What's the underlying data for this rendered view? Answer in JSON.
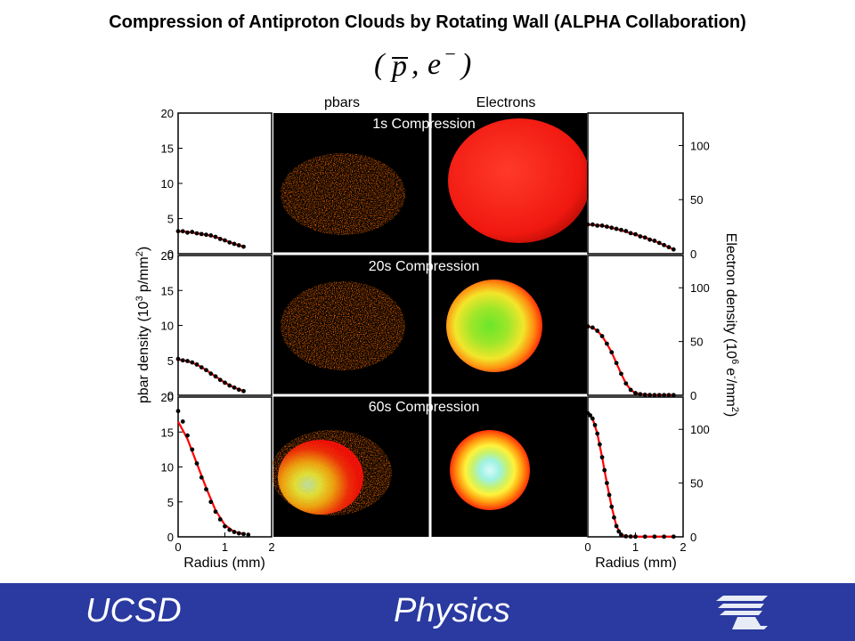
{
  "title": "Compression of Antiproton Clouds by Rotating Wall (ALPHA Collaboration)",
  "formula": {
    "open": "(",
    "pbar": "p",
    "comma": ",",
    "e": "e",
    "sup": "−",
    "close": ")"
  },
  "footer": {
    "left": "UCSD",
    "right": "Physics",
    "logo_icon": "ucsd-trident-logo-icon"
  },
  "colors": {
    "footer_bg": "#2a3aa0",
    "data_points": "#000000",
    "fit_line": "#ff0000",
    "image_bg": "#000000"
  },
  "chart_data": [
    {
      "type": "scatter",
      "title": "",
      "panels": [
        {
          "name": "1s",
          "x": [
            0.0,
            0.1,
            0.2,
            0.3,
            0.4,
            0.5,
            0.6,
            0.7,
            0.8,
            0.9,
            1.0,
            1.1,
            1.2,
            1.3,
            1.4
          ],
          "y": [
            3.2,
            3.2,
            3.0,
            3.1,
            2.9,
            2.8,
            2.7,
            2.6,
            2.4,
            2.1,
            1.9,
            1.6,
            1.4,
            1.2,
            1.0
          ],
          "fit_x": [
            0,
            0.2,
            0.4,
            0.6,
            0.8,
            1.0,
            1.2,
            1.4
          ],
          "fit_y": [
            3.2,
            3.1,
            2.9,
            2.7,
            2.4,
            1.9,
            1.4,
            1.0
          ]
        },
        {
          "name": "20s",
          "x": [
            0.0,
            0.1,
            0.2,
            0.3,
            0.4,
            0.5,
            0.6,
            0.7,
            0.8,
            0.9,
            1.0,
            1.1,
            1.2,
            1.3,
            1.4
          ],
          "y": [
            5.2,
            5.0,
            4.9,
            4.7,
            4.4,
            4.0,
            3.6,
            3.1,
            2.7,
            2.2,
            1.8,
            1.4,
            1.1,
            0.8,
            0.6
          ],
          "fit_x": [
            0,
            0.2,
            0.4,
            0.6,
            0.8,
            1.0,
            1.2,
            1.4
          ],
          "fit_y": [
            5.1,
            4.9,
            4.4,
            3.6,
            2.7,
            1.8,
            1.1,
            0.6
          ]
        },
        {
          "name": "60s",
          "x": [
            0.0,
            0.1,
            0.2,
            0.3,
            0.4,
            0.5,
            0.6,
            0.7,
            0.8,
            0.9,
            1.0,
            1.1,
            1.2,
            1.3,
            1.4,
            1.5
          ],
          "y": [
            18.0,
            16.5,
            14.5,
            12.5,
            10.5,
            8.5,
            6.8,
            5.0,
            3.6,
            2.5,
            1.5,
            1.0,
            0.7,
            0.5,
            0.4,
            0.3
          ],
          "fit_x": [
            0,
            0.2,
            0.4,
            0.6,
            0.8,
            1.0,
            1.2,
            1.4
          ],
          "fit_y": [
            16.5,
            14.0,
            10.5,
            7.0,
            3.8,
            1.7,
            0.7,
            0.4
          ]
        }
      ],
      "xlabel": "Radius (mm)",
      "ylabel": "pbar density (10",
      "ylabel_sup": "3",
      "ylabel_unit": "p/mm",
      "ylabel_sup2": "2",
      "ylabel_close": ")",
      "xlim": [
        0,
        2
      ],
      "ylim": [
        0,
        20
      ],
      "xticks": [
        "0",
        "1",
        "2"
      ],
      "yticks": [
        "0",
        "5",
        "10",
        "15",
        "20"
      ],
      "grid": false
    },
    {
      "type": "scatter",
      "title": "",
      "panels": [
        {
          "name": "1s",
          "x": [
            0.0,
            0.1,
            0.2,
            0.3,
            0.4,
            0.5,
            0.6,
            0.7,
            0.8,
            0.9,
            1.0,
            1.1,
            1.2,
            1.3,
            1.4,
            1.5,
            1.6,
            1.7,
            1.8
          ],
          "y": [
            27,
            27,
            26,
            26,
            25,
            24,
            23,
            22,
            21,
            19,
            18,
            16,
            15,
            13,
            12,
            10,
            8,
            6,
            4
          ],
          "fit_x": [
            0,
            0.3,
            0.6,
            0.9,
            1.2,
            1.5,
            1.8
          ],
          "fit_y": [
            27,
            26,
            23,
            19,
            15,
            10,
            4
          ]
        },
        {
          "name": "20s",
          "x": [
            0.0,
            0.1,
            0.2,
            0.3,
            0.4,
            0.5,
            0.6,
            0.7,
            0.8,
            0.9,
            1.0,
            1.1,
            1.2,
            1.3,
            1.4,
            1.5,
            1.6,
            1.7,
            1.8
          ],
          "y": [
            64,
            63,
            60,
            55,
            48,
            40,
            30,
            20,
            11,
            5,
            2,
            1,
            0.5,
            0.3,
            0.2,
            0.2,
            0.2,
            0.2,
            0.2
          ],
          "fit_x": [
            0,
            0.1,
            0.2,
            0.3,
            0.4,
            0.5,
            0.6,
            0.7,
            0.8,
            0.9,
            1.0,
            1.2,
            1.4,
            1.6,
            1.8
          ],
          "fit_y": [
            64,
            63,
            60,
            55,
            48,
            40,
            30,
            20,
            11,
            5,
            2,
            0.5,
            0.2,
            0.2,
            0.2
          ]
        },
        {
          "name": "60s",
          "x": [
            0.0,
            0.05,
            0.1,
            0.15,
            0.2,
            0.25,
            0.3,
            0.35,
            0.4,
            0.45,
            0.5,
            0.55,
            0.6,
            0.65,
            0.7,
            0.8,
            0.9,
            1.0,
            1.2,
            1.4,
            1.6,
            1.8
          ],
          "y": [
            115,
            113,
            110,
            104,
            96,
            86,
            74,
            62,
            50,
            39,
            28,
            18,
            10,
            5,
            2,
            0.5,
            0.3,
            0.2,
            0.2,
            0.2,
            0.2,
            0.2
          ],
          "fit_x": [
            0,
            0.1,
            0.2,
            0.3,
            0.4,
            0.5,
            0.6,
            0.7,
            0.8,
            1.0,
            1.4,
            1.8
          ],
          "fit_y": [
            114,
            110,
            96,
            74,
            50,
            28,
            10,
            2,
            0.5,
            0.2,
            0.2,
            0.2
          ]
        }
      ],
      "xlabel": "Radius (mm)",
      "ylabel": "Electron density (10",
      "ylabel_sup": "6",
      "ylabel_unit": "e",
      "ylabel_sup_e": "-",
      "ylabel_unit2": "/mm",
      "ylabel_sup2": "2",
      "ylabel_close": ")",
      "xlim": [
        0,
        2
      ],
      "ylim": [
        0,
        130
      ],
      "xticks": [
        "0",
        "1",
        "2"
      ],
      "yticks": [
        "0",
        "50",
        "100"
      ],
      "grid": false
    }
  ],
  "images": {
    "pbars_label": "pbars",
    "electrons_label": "Electrons",
    "rows": [
      "1s Compression",
      "20s Compression",
      "60s Compression"
    ]
  }
}
